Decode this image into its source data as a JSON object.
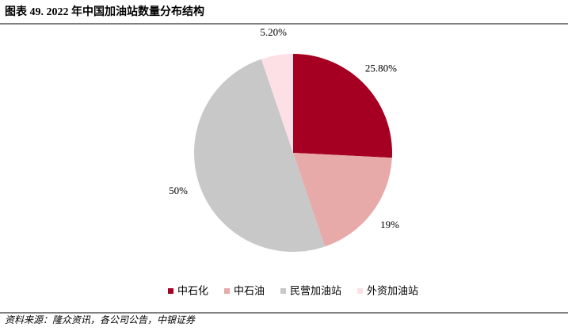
{
  "chart_data": {
    "type": "pie",
    "title": "图表 49. 2022 年中国加油站数量分布结构",
    "categories": [
      "中石化",
      "中石油",
      "民营加油站",
      "外资加油站"
    ],
    "values": [
      25.8,
      19,
      50,
      5.2
    ],
    "value_labels": [
      "25.80%",
      "19%",
      "50%",
      "5.20%"
    ],
    "colors": [
      "#a50021",
      "#e8a9a9",
      "#c8c8c8",
      "#fde0e6"
    ],
    "source": "资料来源：隆众资讯，各公司公告，中银证券"
  }
}
